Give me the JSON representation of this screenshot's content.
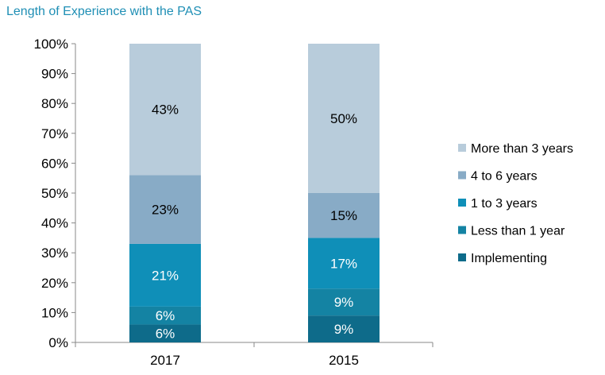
{
  "chart_data": {
    "type": "bar",
    "stacked": true,
    "title": "Length of Experience with the PAS",
    "categories": [
      "2017",
      "2015"
    ],
    "series": [
      {
        "name": "Implementing",
        "values": [
          6,
          9
        ],
        "color": "#0e6b8a",
        "label_color": "#ffffff"
      },
      {
        "name": "Less than 1 year",
        "values": [
          6,
          9
        ],
        "color": "#1483a3",
        "label_color": "#ffffff"
      },
      {
        "name": "1 to 3 years",
        "values": [
          21,
          17
        ],
        "color": "#0f8fb8",
        "label_color": "#ffffff"
      },
      {
        "name": "4 to 6 years",
        "values": [
          23,
          15
        ],
        "color": "#88abc6",
        "label_color": "#000000"
      },
      {
        "name": "More than 3 years",
        "values": [
          43,
          50
        ],
        "color": "#b8ccdb",
        "label_color": "#000000"
      }
    ],
    "segment_labels": [
      [
        "6%",
        "6%",
        "21%",
        "23%",
        "43%"
      ],
      [
        "9%",
        "9%",
        "17%",
        "15%",
        "50%"
      ]
    ],
    "ylim": [
      0,
      100
    ],
    "yticks": [
      "0%",
      "10%",
      "20%",
      "30%",
      "40%",
      "50%",
      "60%",
      "70%",
      "80%",
      "90%",
      "100%"
    ],
    "legend_position": "right",
    "grid": false
  }
}
